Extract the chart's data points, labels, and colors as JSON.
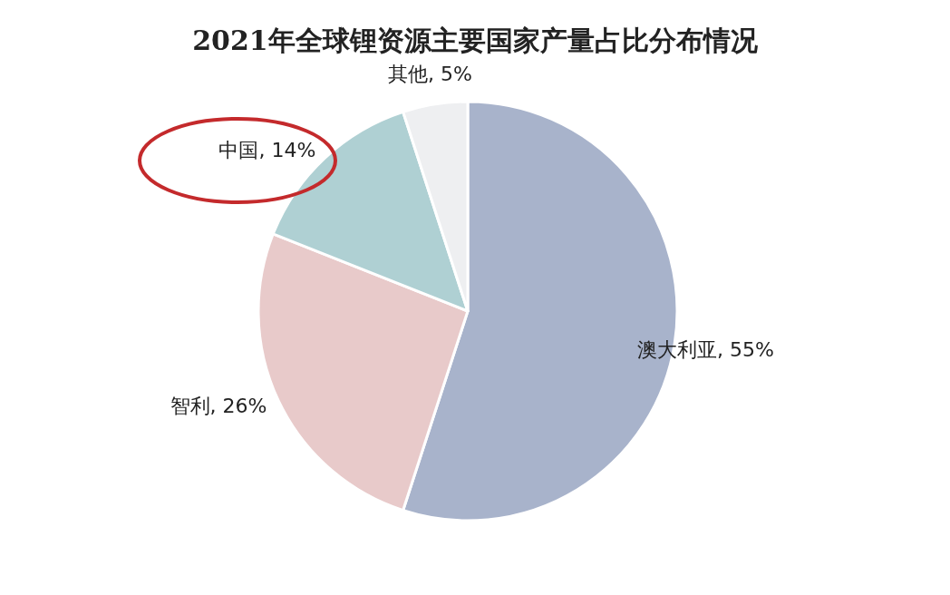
{
  "chart_data": {
    "type": "pie",
    "title": "2021年全球锂资源主要国家产量占比分布情况",
    "categories": [
      "澳大利亚",
      "智利",
      "中国",
      "其他"
    ],
    "values": [
      55,
      26,
      14,
      5
    ],
    "colors": [
      "#a8b3cb",
      "#e8caca",
      "#afd0d3",
      "#eeeff1"
    ],
    "value_labels": [
      ", 55%",
      ", 26%",
      ", 14%",
      ", 5%"
    ]
  }
}
